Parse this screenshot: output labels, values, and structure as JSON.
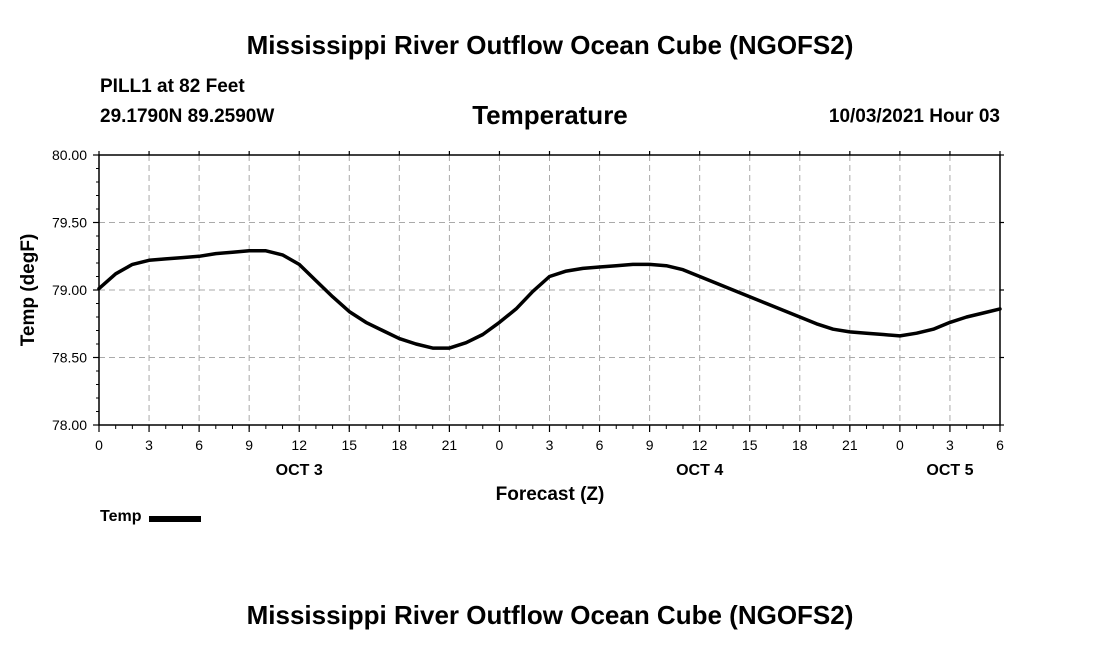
{
  "header": {
    "title_top": "Mississippi River Outflow Ocean Cube (NGOFS2)",
    "title_bottom": "Mississippi River Outflow Ocean Cube (NGOFS2)",
    "station": "PILL1 at 82 Feet",
    "coords": "29.1790N  89.2590W",
    "run_time": "10/03/2021 Hour 03"
  },
  "chart_data": {
    "type": "line",
    "title": "Temperature",
    "xlabel": "Forecast (Z)",
    "ylabel": "Temp (degF)",
    "xlim": [
      0,
      54
    ],
    "ylim": [
      78.0,
      80.0
    ],
    "y_ticks": [
      "78.00",
      "78.50",
      "79.00",
      "79.50",
      "80.00"
    ],
    "x_tick_labels": [
      "0",
      "3",
      "6",
      "9",
      "12",
      "15",
      "18",
      "21",
      "0",
      "3",
      "6",
      "9",
      "12",
      "15",
      "18",
      "21",
      "0",
      "3",
      "6"
    ],
    "day_labels": [
      {
        "label": "OCT 3",
        "x": 12
      },
      {
        "label": "OCT 4",
        "x": 36
      },
      {
        "label": "OCT 5",
        "x": 51
      }
    ],
    "grid": true,
    "series": [
      {
        "name": "Temp",
        "color": "#000000",
        "x": [
          0,
          1,
          2,
          3,
          4,
          5,
          6,
          7,
          8,
          9,
          10,
          11,
          12,
          13,
          14,
          15,
          16,
          17,
          18,
          19,
          20,
          21,
          22,
          23,
          24,
          25,
          26,
          27,
          28,
          29,
          30,
          31,
          32,
          33,
          34,
          35,
          36,
          37,
          38,
          39,
          40,
          41,
          42,
          43,
          44,
          45,
          46,
          47,
          48,
          49,
          50,
          51,
          52,
          53,
          54
        ],
        "values": [
          79.01,
          79.12,
          79.19,
          79.22,
          79.23,
          79.24,
          79.25,
          79.27,
          79.28,
          79.29,
          79.29,
          79.26,
          79.19,
          79.07,
          78.95,
          78.84,
          78.76,
          78.7,
          78.64,
          78.6,
          78.57,
          78.57,
          78.61,
          78.67,
          78.76,
          78.86,
          78.99,
          79.1,
          79.14,
          79.16,
          79.17,
          79.18,
          79.19,
          79.19,
          79.18,
          79.15,
          79.1,
          79.05,
          79.0,
          78.95,
          78.9,
          78.85,
          78.8,
          78.75,
          78.71,
          78.69,
          78.68,
          78.67,
          78.66,
          78.68,
          78.71,
          78.76,
          78.8,
          78.83,
          78.86
        ]
      }
    ],
    "legend": {
      "label": "Temp",
      "placement": "bottom-left"
    }
  }
}
